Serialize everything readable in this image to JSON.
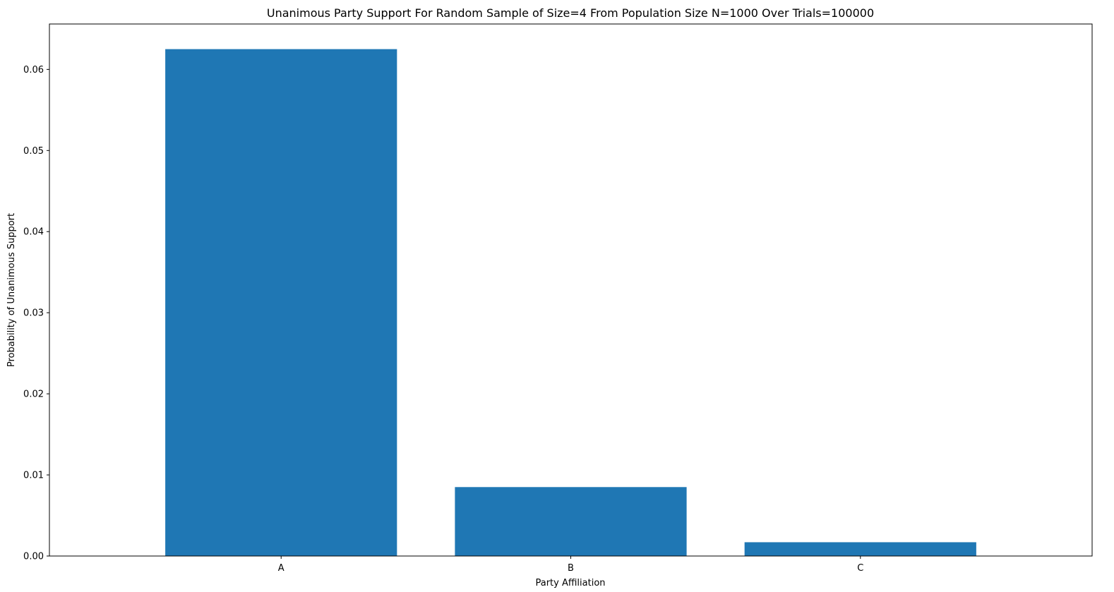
{
  "chart_data": {
    "type": "bar",
    "title": "Unanimous Party Support For Random Sample of Size=4 From Population Size N=1000 Over Trials=100000",
    "xlabel": "Party Affiliation",
    "ylabel": "Probability of Unanimous Support",
    "categories": [
      "A",
      "B",
      "C"
    ],
    "values": [
      0.0625,
      0.0085,
      0.0017
    ],
    "ylim": [
      0,
      0.0656
    ],
    "yticks": [
      0.0,
      0.01,
      0.02,
      0.03,
      0.04,
      0.05,
      0.06
    ],
    "ytick_labels": [
      "0.00",
      "0.01",
      "0.02",
      "0.03",
      "0.04",
      "0.05",
      "0.06"
    ],
    "grid": false,
    "bar_color": "#1f77b4"
  }
}
